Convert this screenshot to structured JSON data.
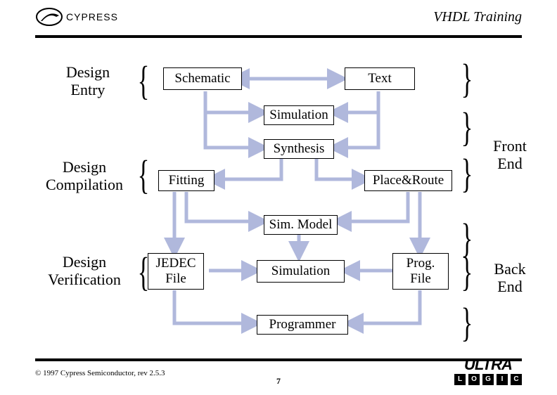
{
  "header": {
    "title": "VHDL Training",
    "logo_text": "CYPRESS"
  },
  "footer": {
    "copyright": "© 1997 Cypress Semiconductor, rev 2.5.3",
    "page_number": "7",
    "ultra_top": "ULTRA",
    "ultra_letters": [
      "L",
      "O",
      "G",
      "I",
      "C"
    ]
  },
  "labels": {
    "design_entry": "Design\nEntry",
    "design_compilation": "Design\nCompilation",
    "design_verification": "Design\nVerification",
    "front_end": "Front\nEnd",
    "back_end": "Back\nEnd"
  },
  "boxes": {
    "schematic": "Schematic",
    "text": "Text",
    "simulation": "Simulation",
    "synthesis": "Synthesis",
    "fitting": "Fitting",
    "place_route": "Place&Route",
    "sim_model": "Sim. Model",
    "jedec_file": "JEDEC\nFile",
    "simulation2": "Simulation",
    "prog_file": "Prog.\nFile",
    "programmer": "Programmer"
  },
  "style": {
    "arrow_color": "#b0b8dc",
    "arrow_width": 5,
    "box_border": "#000000",
    "background": "#ffffff",
    "title_font_size": 20,
    "box_font_size": 19,
    "label_font_size": 22
  }
}
